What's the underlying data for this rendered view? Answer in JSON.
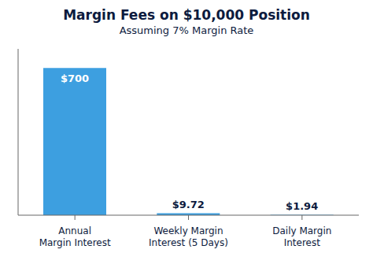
{
  "chart_data": {
    "type": "bar",
    "title": "Margin Fees on $10,000 Position",
    "subtitle": "Assuming 7% Margin Rate",
    "categories": [
      "Annual\nMargin Interest",
      "Weekly Margin\nInterest (5 Days)",
      "Daily Margin\nInterest"
    ],
    "values": [
      700,
      9.72,
      1.94
    ],
    "value_labels": [
      "$700",
      "$9.72",
      "$1.94"
    ],
    "data_labels": true,
    "color": "#3d9fe0",
    "ylim": [
      0,
      791
    ],
    "grid": false,
    "tick_labels": "x"
  }
}
